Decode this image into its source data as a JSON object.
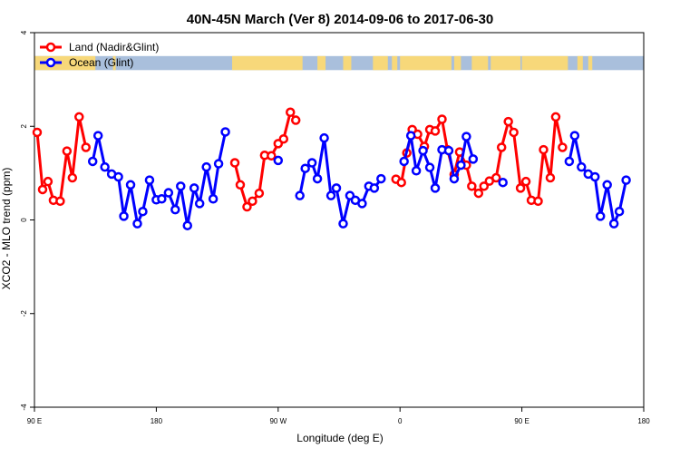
{
  "chart_data": {
    "type": "line",
    "title": "40N-45N March (Ver 8)   2014-09-06 to 2017-06-30",
    "xlabel": "Longitude (deg E)",
    "ylabel": "XCO2 - MLO trend (ppm)",
    "x_ticks": [
      {
        "value": 90,
        "label": "90 E"
      },
      {
        "value": 180,
        "label": "180"
      },
      {
        "value": 270,
        "label": "90 W"
      },
      {
        "value": 360,
        "label": "0"
      },
      {
        "value": 450,
        "label": "90 E"
      },
      {
        "value": 540,
        "label": "180"
      }
    ],
    "y_ticks": [
      -4,
      -2,
      0,
      2,
      4
    ],
    "xlim": [
      90,
      540
    ],
    "ylim": [
      -4,
      4
    ],
    "legend_position": "top-left",
    "grid": false,
    "land_sea_band": {
      "y_range": [
        3.2,
        3.5
      ],
      "land_color": "#f7d87a",
      "ocean_color": "#a9bfdc",
      "land_segments": [
        [
          90,
          135
        ],
        [
          148,
          150
        ],
        [
          236,
          288
        ],
        [
          299,
          305
        ],
        [
          318,
          324
        ],
        [
          340,
          351
        ],
        [
          354,
          358
        ],
        [
          360,
          398
        ],
        [
          400,
          405
        ],
        [
          413,
          425
        ],
        [
          427,
          449
        ],
        [
          450,
          484
        ],
        [
          491,
          495
        ],
        [
          499,
          502
        ]
      ]
    },
    "series": [
      {
        "name": "Land (Nadir&Glint)",
        "color": "#ff0000",
        "segments": [
          [
            [
              92,
              1.87
            ],
            [
              96,
              0.65
            ],
            [
              100,
              0.82
            ],
            [
              104,
              0.42
            ],
            [
              109,
              0.4
            ],
            [
              114,
              1.47
            ],
            [
              118,
              0.9
            ],
            [
              123,
              2.2
            ],
            [
              128,
              1.55
            ]
          ],
          [
            [
              238,
              1.22
            ],
            [
              242,
              0.75
            ],
            [
              247,
              0.28
            ],
            [
              251,
              0.4
            ],
            [
              256,
              0.57
            ],
            [
              260,
              1.38
            ],
            [
              265,
              1.37
            ],
            [
              270,
              1.63
            ],
            [
              274,
              1.73
            ],
            [
              279,
              2.3
            ],
            [
              283,
              2.13
            ]
          ],
          [
            [
              357,
              0.87
            ],
            [
              361,
              0.8
            ],
            [
              365,
              1.43
            ],
            [
              369,
              1.93
            ],
            [
              373,
              1.83
            ],
            [
              378,
              1.57
            ],
            [
              382,
              1.93
            ],
            [
              386,
              1.9
            ],
            [
              391,
              2.15
            ],
            [
              395,
              1.5
            ],
            [
              400,
              0.97
            ],
            [
              404,
              1.45
            ],
            [
              409,
              1.17
            ],
            [
              413,
              0.72
            ],
            [
              418,
              0.57
            ],
            [
              422,
              0.72
            ],
            [
              426,
              0.83
            ],
            [
              431,
              0.9
            ],
            [
              435,
              1.55
            ],
            [
              440,
              2.1
            ],
            [
              444,
              1.87
            ],
            [
              449,
              0.68
            ],
            [
              453,
              0.82
            ],
            [
              457,
              0.42
            ],
            [
              462,
              0.4
            ],
            [
              466,
              1.5
            ],
            [
              471,
              0.9
            ],
            [
              475,
              2.2
            ],
            [
              480,
              1.55
            ]
          ]
        ]
      },
      {
        "name": "Ocean (Glint)",
        "color": "#0000ff",
        "segments": [
          [
            [
              133,
              1.25
            ],
            [
              137,
              1.8
            ],
            [
              142,
              1.13
            ],
            [
              147,
              0.98
            ],
            [
              152,
              0.92
            ],
            [
              156,
              0.08
            ],
            [
              161,
              0.75
            ],
            [
              166,
              -0.08
            ],
            [
              170,
              0.18
            ],
            [
              175,
              0.85
            ],
            [
              180,
              0.43
            ],
            [
              184,
              0.45
            ],
            [
              189,
              0.58
            ],
            [
              194,
              0.22
            ],
            [
              198,
              0.72
            ],
            [
              203,
              -0.12
            ],
            [
              208,
              0.68
            ],
            [
              212,
              0.35
            ],
            [
              217,
              1.13
            ],
            [
              222,
              0.45
            ],
            [
              226,
              1.2
            ],
            [
              231,
              1.88
            ]
          ],
          [
            [
              270,
              1.27
            ]
          ],
          [
            [
              286,
              0.52
            ],
            [
              290,
              1.1
            ],
            [
              295,
              1.22
            ],
            [
              299,
              0.88
            ],
            [
              304,
              1.75
            ],
            [
              309,
              0.52
            ],
            [
              313,
              0.68
            ],
            [
              318,
              -0.08
            ],
            [
              323,
              0.52
            ],
            [
              327,
              0.42
            ],
            [
              332,
              0.35
            ],
            [
              337,
              0.72
            ],
            [
              341,
              0.68
            ],
            [
              346,
              0.88
            ]
          ],
          [
            [
              363,
              1.25
            ],
            [
              368,
              1.8
            ],
            [
              372,
              1.05
            ],
            [
              377,
              1.48
            ],
            [
              382,
              1.12
            ],
            [
              386,
              0.68
            ],
            [
              391,
              1.5
            ],
            [
              396,
              1.48
            ],
            [
              400,
              0.88
            ],
            [
              405,
              1.17
            ],
            [
              409,
              1.78
            ],
            [
              414,
              1.3
            ]
          ],
          [
            [
              436,
              0.8
            ]
          ],
          [
            [
              485,
              1.25
            ],
            [
              489,
              1.8
            ],
            [
              494,
              1.13
            ],
            [
              499,
              0.98
            ],
            [
              504,
              0.92
            ],
            [
              508,
              0.08
            ],
            [
              513,
              0.75
            ],
            [
              518,
              -0.08
            ],
            [
              522,
              0.18
            ],
            [
              527,
              0.85
            ]
          ]
        ]
      }
    ]
  }
}
